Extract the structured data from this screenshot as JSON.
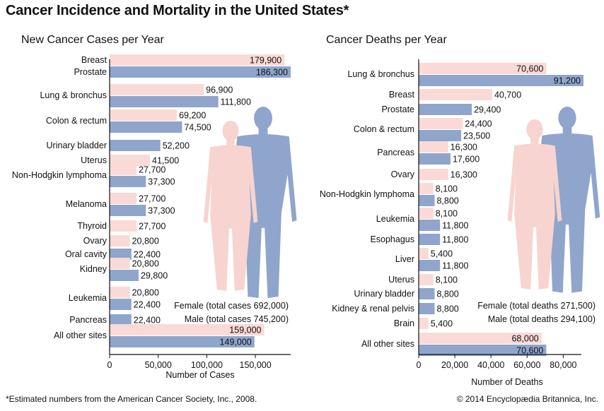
{
  "title": "Cancer Incidence and Mortality in the United States*",
  "footnote": "*Estimated numbers from the American Cancer Society, Inc., 2008.",
  "credit": "© 2014 Encyclopædia Britannica, Inc.",
  "colors": {
    "female": "#fadad6",
    "male": "#8fa5cc",
    "female_figure": "#f7d4cf",
    "male_figure": "#8fa5cc"
  },
  "chart_data": [
    {
      "type": "bar",
      "orientation": "horizontal",
      "title": "New Cancer Cases per Year",
      "xlabel": "Number of Cases",
      "xlim": [
        0,
        185000
      ],
      "xticks": [
        0,
        50000,
        100000,
        150000
      ],
      "xtick_labels": [
        "0",
        "50,000",
        "100,000",
        "150,000"
      ],
      "legend": [
        "Female (total cases 692,000)",
        "Male (total cases 745,200)"
      ],
      "categories": [
        {
          "label": "Breast",
          "bars": [
            {
              "sex": "female",
              "value": 179900,
              "text": "179,900"
            },
            {
              "sex": "male",
              "value": 186300,
              "text": "186,300"
            }
          ]
        },
        {
          "label": "Lung & bronchus",
          "bars": [
            {
              "sex": "female",
              "value": 96900,
              "text": "96,900"
            },
            {
              "sex": "male",
              "value": 111800,
              "text": "111,800"
            }
          ]
        },
        {
          "label": "Colon & rectum",
          "bars": [
            {
              "sex": "female",
              "value": 69200,
              "text": "69,200"
            },
            {
              "sex": "male",
              "value": 74500,
              "text": "74,500"
            }
          ]
        },
        {
          "label": "Urinary bladder",
          "bars": [
            {
              "sex": "male",
              "value": 52200,
              "text": "52,200"
            }
          ]
        },
        {
          "label": "Uterus",
          "bars": [
            {
              "sex": "female",
              "value": 41500,
              "text": "41,500"
            }
          ]
        },
        {
          "label": "Non-Hodgkin lymphoma",
          "bars": [
            {
              "sex": "female",
              "value": 27700,
              "text": "27,700"
            },
            {
              "sex": "male",
              "value": 37300,
              "text": "37,300"
            }
          ]
        },
        {
          "label": "Melanoma",
          "bars": [
            {
              "sex": "female",
              "value": 27700,
              "text": "27,700"
            },
            {
              "sex": "male",
              "value": 37300,
              "text": "37,300"
            }
          ]
        },
        {
          "label": "Thyroid",
          "bars": [
            {
              "sex": "female",
              "value": 27700,
              "text": "27,700"
            }
          ]
        },
        {
          "label": "Ovary",
          "bars": [
            {
              "sex": "female",
              "value": 20800,
              "text": "20,800"
            }
          ]
        },
        {
          "label": "Oral cavity",
          "bars": [
            {
              "sex": "male",
              "value": 22400,
              "text": "22,400"
            }
          ]
        },
        {
          "label": "Kidney",
          "bars": [
            {
              "sex": "female",
              "value": 20800,
              "text": "20,800"
            },
            {
              "sex": "male",
              "value": 29800,
              "text": "29,800"
            }
          ]
        },
        {
          "label": "Leukemia",
          "bars": [
            {
              "sex": "female",
              "value": 20800,
              "text": "20,800"
            },
            {
              "sex": "male",
              "value": 22400,
              "text": "22,400"
            }
          ]
        },
        {
          "label": "Pancreas",
          "bars": [
            {
              "sex": "male",
              "value": 22400,
              "text": "22,400"
            }
          ]
        },
        {
          "label": "All other sites",
          "bars": [
            {
              "sex": "female",
              "value": 159000,
              "text": "159,000"
            },
            {
              "sex": "male",
              "value": 149000,
              "text": "149,000"
            }
          ]
        }
      ],
      "extra_labels": [
        {
          "near": "Breast",
          "text": "Prostate"
        }
      ]
    },
    {
      "type": "bar",
      "orientation": "horizontal",
      "title": "Cancer Deaths per Year",
      "xlabel": "Number of Deaths",
      "xlim": [
        0,
        98000
      ],
      "xticks": [
        0,
        20000,
        40000,
        60000,
        80000
      ],
      "xtick_labels": [
        "0",
        "20,000",
        "40,000",
        "60,000",
        "80,000"
      ],
      "legend": [
        "Female (total deaths 271,500)",
        "Male (total deaths 294,100)"
      ],
      "categories": [
        {
          "label": "Lung & bronchus",
          "bars": [
            {
              "sex": "female",
              "value": 70600,
              "text": "70,600"
            },
            {
              "sex": "male",
              "value": 91200,
              "text": "91,200"
            }
          ]
        },
        {
          "label": "Breast",
          "bars": [
            {
              "sex": "female",
              "value": 40700,
              "text": "40,700"
            }
          ]
        },
        {
          "label": "Prostate",
          "bars": [
            {
              "sex": "male",
              "value": 29400,
              "text": "29,400"
            }
          ]
        },
        {
          "label": "Colon & rectum",
          "bars": [
            {
              "sex": "female",
              "value": 24400,
              "text": "24,400"
            },
            {
              "sex": "male",
              "value": 23500,
              "text": "23,500"
            }
          ]
        },
        {
          "label": "Pancreas",
          "bars": [
            {
              "sex": "female",
              "value": 16300,
              "text": "16,300"
            },
            {
              "sex": "male",
              "value": 17600,
              "text": "17,600"
            }
          ]
        },
        {
          "label": "Ovary",
          "bars": [
            {
              "sex": "female",
              "value": 16300,
              "text": "16,300"
            }
          ]
        },
        {
          "label": "Non-Hodgkin lymphoma",
          "bars": [
            {
              "sex": "female",
              "value": 8100,
              "text": "8,100"
            },
            {
              "sex": "male",
              "value": 8800,
              "text": "8,800"
            }
          ]
        },
        {
          "label": "Leukemia",
          "bars": [
            {
              "sex": "female",
              "value": 8100,
              "text": "8,100"
            },
            {
              "sex": "male",
              "value": 11800,
              "text": "11,800"
            }
          ]
        },
        {
          "label": "Esophagus",
          "bars": [
            {
              "sex": "male",
              "value": 11800,
              "text": "11,800"
            }
          ]
        },
        {
          "label": "Liver",
          "bars": [
            {
              "sex": "female",
              "value": 5400,
              "text": "5,400"
            },
            {
              "sex": "male",
              "value": 11800,
              "text": "11,800"
            }
          ]
        },
        {
          "label": "Uterus",
          "bars": [
            {
              "sex": "female",
              "value": 8100,
              "text": "8,100"
            }
          ]
        },
        {
          "label": "Urinary bladder",
          "bars": [
            {
              "sex": "male",
              "value": 8800,
              "text": "8,800"
            }
          ]
        },
        {
          "label": "Kidney & renal pelvis",
          "bars": [
            {
              "sex": "male",
              "value": 8800,
              "text": "8,800"
            }
          ]
        },
        {
          "label": "Brain",
          "bars": [
            {
              "sex": "female",
              "value": 5400,
              "text": "5,400"
            }
          ]
        },
        {
          "label": "All other sites",
          "bars": [
            {
              "sex": "female",
              "value": 68000,
              "text": "68,000"
            },
            {
              "sex": "male",
              "value": 70600,
              "text": "70,600"
            }
          ]
        }
      ]
    }
  ]
}
